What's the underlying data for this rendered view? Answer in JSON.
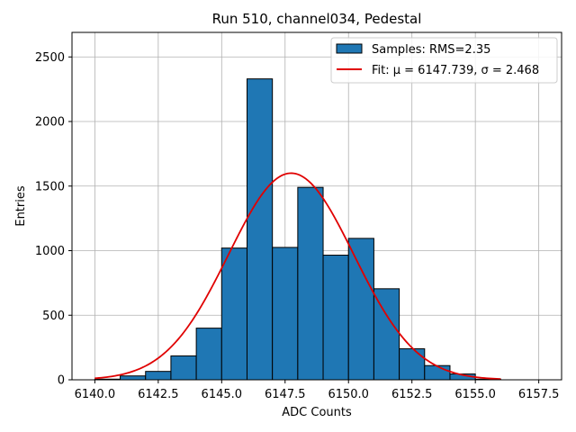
{
  "chart_data": {
    "type": "bar",
    "title": "Run 510, channel034, Pedestal",
    "xlabel": "ADC Counts",
    "ylabel": "Entries",
    "xlim": [
      6139.1,
      6158.4
    ],
    "ylim": [
      0,
      2690
    ],
    "grid": true,
    "x_ticks": [
      6140.0,
      6142.5,
      6145.0,
      6147.5,
      6150.0,
      6152.5,
      6155.0,
      6157.5
    ],
    "x_tick_labels": [
      "6140.0",
      "6142.5",
      "6145.0",
      "6147.5",
      "6150.0",
      "6152.5",
      "6155.0",
      "6157.5"
    ],
    "y_ticks": [
      0,
      500,
      1000,
      1500,
      2000,
      2500
    ],
    "y_tick_labels": [
      "0",
      "500",
      "1000",
      "1500",
      "2000",
      "2500"
    ],
    "bin_edges": [
      6140.0,
      6141.0,
      6142.0,
      6143.0,
      6144.0,
      6145.0,
      6146.0,
      6147.0,
      6148.0,
      6149.0,
      6150.0,
      6151.0,
      6152.0,
      6153.0,
      6154.0,
      6155.0,
      6156.0
    ],
    "values": [
      5,
      30,
      65,
      185,
      400,
      1020,
      2330,
      1025,
      1490,
      965,
      1095,
      705,
      240,
      110,
      45,
      5
    ],
    "bar_color": "#1f77b4",
    "bar_edge_color": "#000000",
    "fit": {
      "mu": 6147.739,
      "sigma": 2.468,
      "amplitude": 1600,
      "x_range": [
        6140.0,
        6156.0
      ],
      "color": "#e00000"
    },
    "legend": {
      "position": "top-right",
      "entries": [
        {
          "kind": "patch",
          "label": "Samples: RMS=2.35"
        },
        {
          "kind": "line",
          "label": "Fit: μ = 6147.739, σ = 2.468"
        }
      ]
    }
  }
}
